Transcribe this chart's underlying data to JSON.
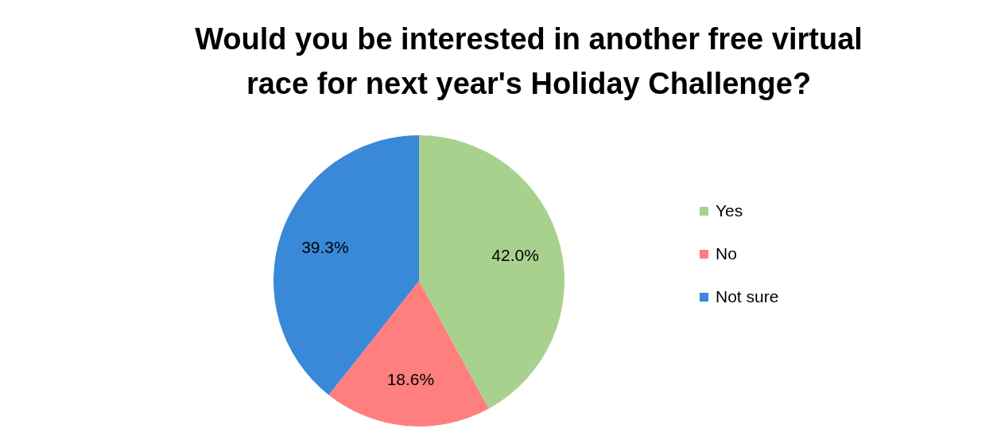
{
  "chart_data": {
    "type": "pie",
    "title": [
      "Would you be interested in another free virtual",
      "race for next year's Holiday Challenge?"
    ],
    "categories": [
      "Yes",
      "No",
      "Not sure"
    ],
    "values": [
      42.0,
      18.6,
      39.3
    ],
    "value_labels": [
      "42.0%",
      "18.6%",
      "39.3%"
    ],
    "colors": [
      "#a9d18e",
      "#ff7f7f",
      "#3a88d8"
    ],
    "legend": "right"
  }
}
